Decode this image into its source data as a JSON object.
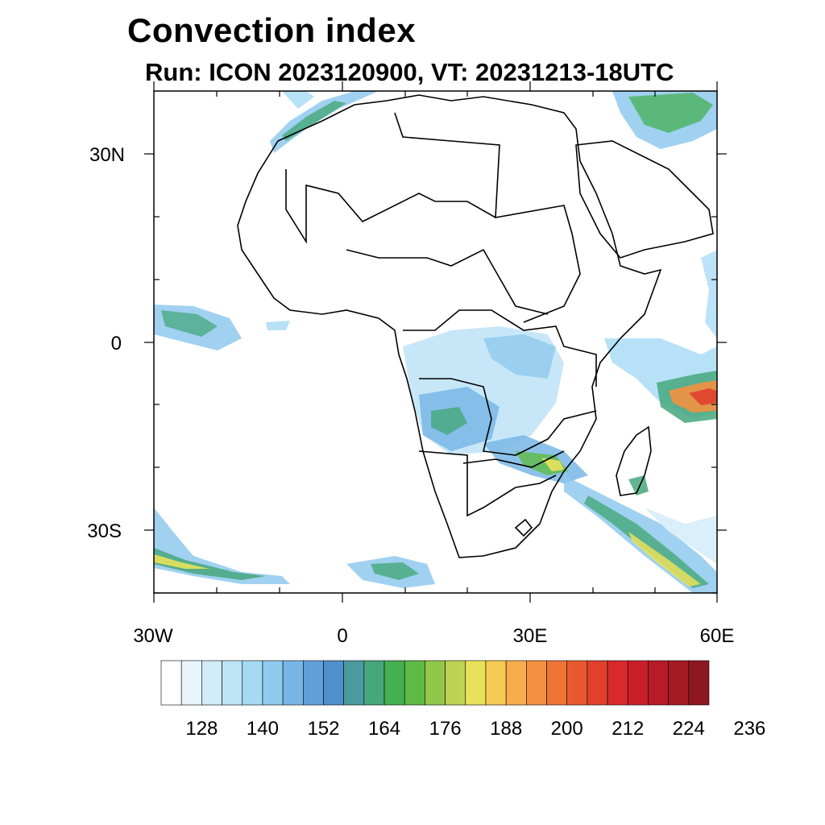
{
  "title": "Convection index",
  "subtitle": "Run: ICON 2023120900,  VT: 20231213-18UTC",
  "map": {
    "lon_range": [
      -30,
      60
    ],
    "lat_range": [
      -40,
      40
    ],
    "lat_ticks": [
      {
        "value": 30,
        "label": "30N"
      },
      {
        "value": 0,
        "label": "0"
      },
      {
        "value": -30,
        "label": "30S"
      }
    ],
    "lon_ticks": [
      {
        "value": -30,
        "label": "30W"
      },
      {
        "value": 0,
        "label": "0"
      },
      {
        "value": 30,
        "label": "30E"
      },
      {
        "value": 60,
        "label": "60E"
      }
    ]
  },
  "colorbar": {
    "colors": [
      "#ffffff",
      "#e8f5fc",
      "#d2ebf9",
      "#bde3f7",
      "#a5daf5",
      "#8fc9ee",
      "#78b6e6",
      "#619fdb",
      "#4f8fcc",
      "#4a9aa0",
      "#46a77c",
      "#43b051",
      "#5fba45",
      "#92c84a",
      "#bdd353",
      "#e8e25a",
      "#f6cb53",
      "#f7ad4b",
      "#f39140",
      "#ee7536",
      "#e8592f",
      "#e0402c",
      "#d62a2b",
      "#c91f2a",
      "#b71b27",
      "#a31924",
      "#8c1720"
    ],
    "labels": [
      "128",
      "140",
      "152",
      "164",
      "176",
      "188",
      "200",
      "212",
      "224",
      "236"
    ]
  }
}
